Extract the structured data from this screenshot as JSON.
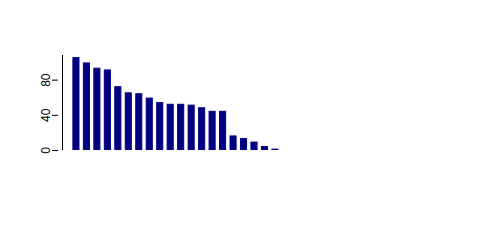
{
  "chart_data": {
    "type": "bar",
    "values": [
      105,
      99,
      93,
      91,
      72,
      65,
      64,
      59,
      54,
      52,
      52,
      51,
      48,
      44,
      44,
      16,
      13,
      9,
      4,
      1,
      0,
      0,
      0,
      0,
      0,
      0,
      0,
      0,
      0,
      0,
      0,
      0,
      0,
      0,
      0
    ],
    "color": "#000080",
    "ylim": [
      0,
      108
    ],
    "yticks": [
      0,
      40,
      80
    ],
    "grid": false,
    "tick_labels": "y"
  }
}
